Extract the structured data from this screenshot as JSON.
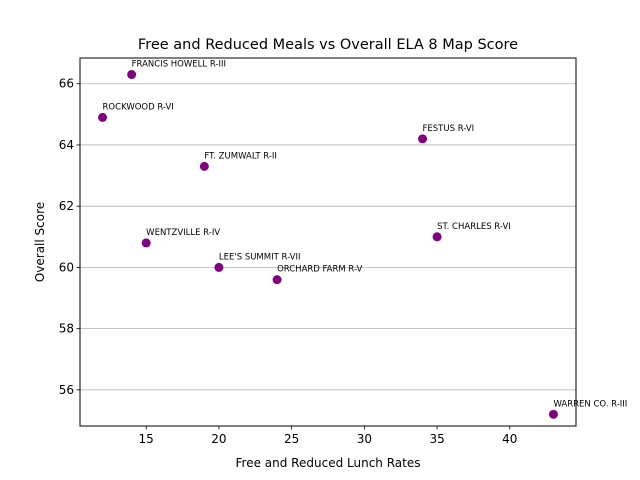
{
  "chart_data": {
    "type": "scatter",
    "title": "Free and Reduced Meals vs Overall ELA 8 Map Score",
    "xlabel": "Free and Reduced Lunch Rates",
    "ylabel": "Overall Score",
    "xlim": [
      10.45,
      44.55
    ],
    "ylim": [
      54.82,
      66.84
    ],
    "xticks": [
      15,
      20,
      25,
      30,
      35,
      40
    ],
    "yticks": [
      56,
      58,
      60,
      62,
      64,
      66
    ],
    "grid": "horizontal",
    "point_color": "#800080",
    "points": [
      {
        "label": "FRANCIS HOWELL R-III",
        "x": 14,
        "y": 66.3
      },
      {
        "label": "ROCKWOOD R-VI",
        "x": 12,
        "y": 64.9
      },
      {
        "label": "FESTUS R-VI",
        "x": 34,
        "y": 64.2
      },
      {
        "label": "FT. ZUMWALT R-II",
        "x": 19,
        "y": 63.3
      },
      {
        "label": "ST. CHARLES R-VI",
        "x": 35,
        "y": 61.0
      },
      {
        "label": "WENTZVILLE R-IV",
        "x": 15,
        "y": 60.8
      },
      {
        "label": "LEE'S SUMMIT R-VII",
        "x": 20,
        "y": 60.0
      },
      {
        "label": "ORCHARD FARM R-V",
        "x": 24,
        "y": 59.6
      },
      {
        "label": "WARREN CO. R-III",
        "x": 43,
        "y": 55.2
      }
    ]
  }
}
